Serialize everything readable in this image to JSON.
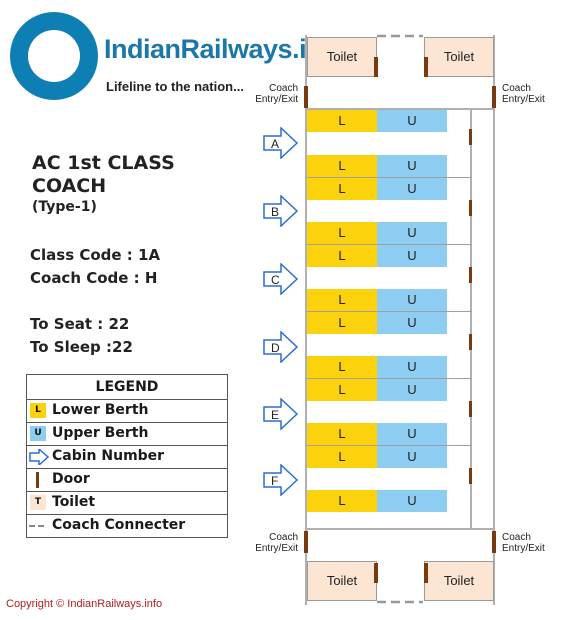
{
  "header": {
    "brand": "IndianRailways.info",
    "tagline": "Lifeline to the nation..."
  },
  "info": {
    "title_line1": "AC 1st CLASS",
    "title_line2": "COACH",
    "title_line3": "(Type-1)",
    "class_code": "Class Code : 1A",
    "coach_code": "Coach Code : H",
    "to_seat": "To Seat : 22",
    "to_sleep": "To Sleep :22"
  },
  "legend": {
    "title": "LEGEND",
    "items": [
      {
        "symbol": "L",
        "label": "Lower Berth"
      },
      {
        "symbol": "U",
        "label": "Upper Berth"
      },
      {
        "symbol": "",
        "label": "Cabin Number"
      },
      {
        "symbol": "",
        "label": "Door"
      },
      {
        "symbol": "T",
        "label": "Toilet"
      },
      {
        "symbol": "",
        "label": "Coach Connecter"
      }
    ]
  },
  "coach": {
    "toilet_label": "Toilet",
    "entry_label_1": "Coach",
    "entry_label_2": "Entry/Exit",
    "lower_label": "L",
    "upper_label": "U",
    "cabins": [
      "A",
      "B",
      "C",
      "D",
      "E",
      "F"
    ]
  },
  "colors": {
    "lower_berth": "#fbd20b",
    "upper_berth": "#8dcdf2",
    "toilet": "#fde5d3",
    "door": "#7a3a0f",
    "brand": "#1c77a8",
    "cabin_arrow": "#2a6fd0"
  },
  "copyright": "Copyright © IndianRailways.info"
}
